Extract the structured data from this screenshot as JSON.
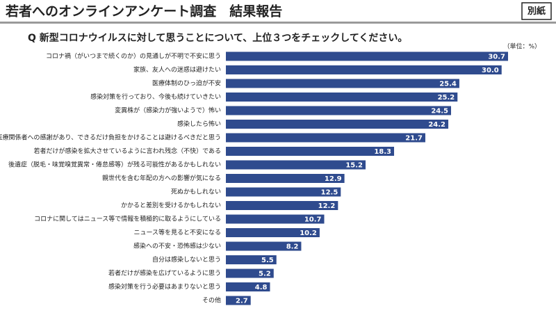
{
  "header": {
    "title": "若者へのオンラインアンケート調査　結果報告",
    "badge": "別紙"
  },
  "chart_data": {
    "type": "bar",
    "orientation": "horizontal",
    "title": "Q 新型コロナウイルスに対して思うことについて、上位３つをチェックしてください。",
    "unit": "（単位：%）",
    "color": "#2f4b8e",
    "categories": [
      "コロナ禍（がいつまで続くのか）の見通しが不明で不安に思う",
      "家族、友人への迷惑は避けたい",
      "医療体制のひっ迫が不安",
      "感染対策を行っており、今後も続けていきたい",
      "変異株が（感染力が強いようで）怖い",
      "感染したら怖い",
      "医療関係者への感謝があり、できるだけ負担をかけることは避けるべきだと思う",
      "若者だけが感染を拡大させているように言われ残念（不快）である",
      "後遺症（脱毛・味覚嗅覚異常・倦怠感等）が残る可能性があるかもしれない",
      "親世代を含む年配の方への影響が気になる",
      "死ぬかもしれない",
      "かかると差別を受けるかもしれない",
      "コロナに関してはニュース等で情報を積極的に取るようにしている",
      "ニュース等を見ると不安になる",
      "感染への不安・恐怖感は少ない",
      "自分は感染しないと思う",
      "若者だけが感染を広げているように思う",
      "感染対策を行う必要はあまりないと思う",
      "その他"
    ],
    "values": [
      30.7,
      30.0,
      25.4,
      25.2,
      24.5,
      24.2,
      21.7,
      18.3,
      15.2,
      12.9,
      12.5,
      12.2,
      10.7,
      10.2,
      8.2,
      5.5,
      5.2,
      4.8,
      2.7
    ],
    "value_labels": [
      "30.7",
      "30.0",
      "25.4",
      "25.2",
      "24.5",
      "24.2",
      "21.7",
      "18.3",
      "15.2",
      "12.9",
      "12.5",
      "12.2",
      "10.7",
      "10.2",
      "8.2",
      "5.5",
      "5.2",
      "4.8",
      "2.7"
    ]
  }
}
